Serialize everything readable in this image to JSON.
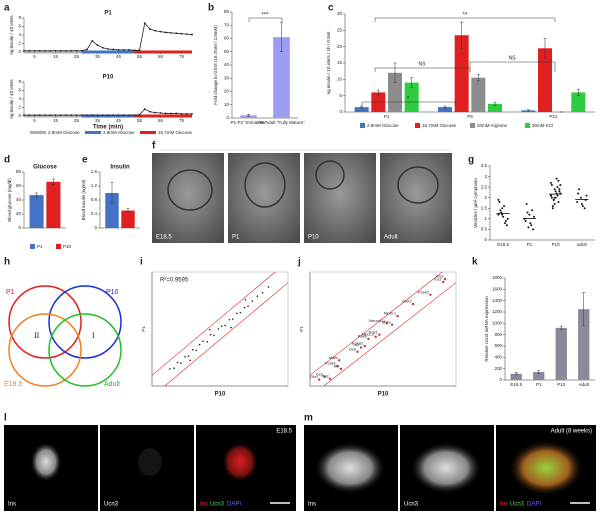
{
  "panel_labels": [
    "a",
    "b",
    "c",
    "d",
    "e",
    "f",
    "g",
    "h",
    "i",
    "j",
    "k",
    "l",
    "m"
  ],
  "chart_data": [
    {
      "type": "line",
      "title": "P1",
      "ylabel": "ng insulin / 40 islets",
      "color": "#222222",
      "x": [
        0,
        2.5,
        5,
        7.5,
        10,
        12.5,
        15,
        17.5,
        20,
        22.5,
        25,
        27.5,
        30,
        32.5,
        35,
        37.5,
        40,
        42.5,
        45,
        47.5,
        50,
        52.5,
        55,
        57.5,
        60,
        62.5,
        65,
        67.5,
        70,
        72.5,
        75,
        77.5,
        80
      ],
      "values": [
        0.3,
        0.3,
        0.3,
        0.3,
        0.3,
        0.3,
        0.3,
        0.3,
        0.3,
        0.3,
        0.3,
        0.3,
        0.6,
        2.6,
        1.6,
        1.0,
        0.7,
        0.6,
        0.5,
        0.5,
        0.5,
        0.4,
        0.4,
        6.8,
        5.4,
        5.0,
        4.8,
        4.6,
        4.5,
        4.4,
        4.3,
        4.2,
        4.1
      ],
      "xlim": [
        0,
        80
      ],
      "xticks": [
        5,
        15,
        25,
        35,
        45,
        55,
        65,
        75
      ],
      "ylim": [
        0,
        8
      ],
      "yticks": [
        0,
        2,
        4,
        6,
        8
      ],
      "bands": [
        {
          "name": "2.8mM Glucose",
          "color": "#b0b0b0",
          "range": [
            0,
            27.5
          ]
        },
        {
          "name": "2.8mM Glucose",
          "color": "#4472c4",
          "range": [
            27.5,
            52.5
          ]
        },
        {
          "name": "16.7mM Glucose",
          "color": "#e02020",
          "range": [
            52.5,
            80
          ]
        }
      ]
    },
    {
      "type": "line",
      "title": "P10",
      "xlabel": "Time (min)",
      "ylabel": "ng insulin / 40 islets",
      "color": "#222222",
      "x": [
        0,
        2.5,
        5,
        7.5,
        10,
        12.5,
        15,
        17.5,
        20,
        22.5,
        25,
        27.5,
        30,
        32.5,
        35,
        37.5,
        40,
        42.5,
        45,
        47.5,
        50,
        52.5,
        55,
        57.5,
        60,
        62.5,
        65,
        67.5,
        70,
        72.5,
        75,
        77.5,
        80
      ],
      "values": [
        0.2,
        0.2,
        0.2,
        0.2,
        0.2,
        0.2,
        0.2,
        0.2,
        0.2,
        0.2,
        0.2,
        0.2,
        0.2,
        0.2,
        0.2,
        0.2,
        0.2,
        0.2,
        0.2,
        0.2,
        0.2,
        0.2,
        0.3,
        1.6,
        1.0,
        0.8,
        0.7,
        0.6,
        0.6,
        0.6,
        0.5,
        0.5,
        0.5
      ],
      "xlim": [
        0,
        80
      ],
      "xticks": [
        5,
        15,
        25,
        35,
        45,
        55,
        65,
        75
      ],
      "ylim": [
        0,
        8
      ],
      "yticks": [
        0,
        2,
        4,
        6,
        8
      ]
    },
    {
      "type": "bar",
      "ylabel": "Fold change in GSIS (16.7mM / 2.8mM)",
      "color": "#9c9cf0",
      "categories": [
        "P1-P2 \"Immature\"",
        "P9-Adult \"Fully Mature\""
      ],
      "values": [
        2,
        61
      ],
      "errors": [
        0.8,
        11
      ],
      "ylim": [
        0,
        80
      ],
      "yticks": [
        0,
        10,
        20,
        30,
        40,
        50,
        60,
        70,
        80
      ],
      "annotations": [
        "***"
      ]
    },
    {
      "type": "bar",
      "ylabel": "ng insulin / 10 islets / 1h / 0.5ml",
      "categories": [
        "P1",
        "P9",
        "P21"
      ],
      "series": [
        {
          "name": "2.8mM Glucose",
          "color": "#4472c4",
          "values": [
            1.5,
            1.5,
            0.5
          ],
          "errors": [
            0.3,
            0.3,
            0.2
          ]
        },
        {
          "name": "16.7mM Glucose",
          "color": "#e02020",
          "values": [
            6,
            23.5,
            19.5
          ],
          "errors": [
            0.7,
            4,
            3
          ]
        },
        {
          "name": "20mM Arginine",
          "color": "#8c8c8c",
          "values": [
            12,
            10.5,
            0
          ],
          "errors": [
            3,
            1,
            0
          ]
        },
        {
          "name": "30mM KCl",
          "color": "#2ecc40",
          "values": [
            9,
            2.5,
            6
          ],
          "errors": [
            1.5,
            0.5,
            1
          ]
        }
      ],
      "ylim": [
        0,
        30
      ],
      "yticks": [
        0,
        5,
        10,
        15,
        20,
        25,
        30
      ],
      "annotations": [
        "**",
        "NS",
        "NS",
        "*"
      ]
    },
    {
      "type": "bar",
      "title": "Glucose",
      "ylabel": "Blood glucose (mg/dl)",
      "categories": [
        null
      ],
      "series": [
        {
          "name": "P1",
          "color": "#4472c4",
          "values": [
            47
          ],
          "errors": [
            3
          ]
        },
        {
          "name": "P10",
          "color": "#e02020",
          "values": [
            66
          ],
          "errors": [
            4
          ]
        }
      ],
      "ylim": [
        0,
        80
      ],
      "yticks": [
        0,
        20,
        40,
        60,
        80
      ]
    },
    {
      "type": "bar",
      "title": "Insulin",
      "ylabel": "Blood insulin (ng/ml)",
      "categories": [
        null
      ],
      "series": [
        {
          "color": "#4472c4",
          "values": [
            1.0
          ],
          "errors": [
            0.3
          ]
        },
        {
          "color": "#e02020",
          "values": [
            0.5
          ],
          "errors": [
            0.05
          ]
        }
      ],
      "ylim": [
        0,
        1.6
      ],
      "yticks": [
        0,
        0.4,
        0.8,
        1.2,
        1.6
      ]
    },
    {
      "type": "strip",
      "ylabel": "Vesicles / µm² cytoplasm",
      "color": "#111111",
      "categories": [
        "E18.5",
        "P1",
        "P10",
        "adult"
      ],
      "values": [
        [
          1.2,
          1.5,
          0.9,
          1.8,
          1.1,
          0.7,
          1.4,
          1.6,
          1.0,
          1.3,
          0.8,
          1.9,
          1.2
        ],
        [
          1.0,
          0.6,
          1.4,
          0.9,
          1.2,
          0.5,
          1.7,
          0.8,
          1.1,
          1.3,
          0.7
        ],
        [
          2.1,
          2.4,
          1.8,
          2.6,
          2.0,
          2.3,
          1.6,
          2.9,
          2.2,
          1.9,
          2.5,
          2.1,
          1.7,
          2.8,
          2.0,
          2.3,
          2.4,
          1.5,
          2.2,
          2.6,
          1.9,
          2.1,
          2.7,
          2.0
        ],
        [
          1.8,
          2.0,
          1.5,
          2.2,
          1.7,
          1.9,
          2.4,
          1.6,
          2.1
        ]
      ],
      "means": [
        1.26,
        1.02,
        2.17,
        1.91
      ],
      "ylim": [
        0,
        3.5
      ],
      "yticks": [
        0,
        0.5,
        1,
        1.5,
        2,
        2.5,
        3,
        3.5
      ]
    },
    {
      "type": "scatter",
      "xlabel": "P10",
      "ylabel": "P1",
      "annotation": "R²=0.9595",
      "color": "#222222",
      "x": [
        2.1,
        2.6,
        3.0,
        3.4,
        3.9,
        4.3,
        4.8,
        5.2,
        5.6,
        6.0,
        6.5,
        6.9,
        7.3,
        7.8,
        8.2,
        8.6,
        9.1,
        9.5,
        10.0,
        10.4,
        10.9,
        11.3,
        11.8,
        12.4,
        13.0,
        13.7,
        4.5,
        6.8,
        9.3,
        11.0
      ],
      "y": [
        2.4,
        2.5,
        3.3,
        3.2,
        4.1,
        4.2,
        5.1,
        5.0,
        5.8,
        6.3,
        6.2,
        7.2,
        7.1,
        8.0,
        8.4,
        8.5,
        9.3,
        9.4,
        10.2,
        10.3,
        11.0,
        11.2,
        11.9,
        12.6,
        13.1,
        13.9,
        3.6,
        7.9,
        8.2,
        12.1
      ],
      "xlim": [
        0,
        16
      ],
      "ylim": [
        0,
        16
      ]
    },
    {
      "type": "scatter",
      "xlabel": "P10",
      "ylabel": "P1",
      "color": "#c0392b",
      "point_labels": [
        "Ins1",
        "Ins2",
        "Pcsk2",
        "Glut2",
        "Nkx6.1",
        "Mafa",
        "NeuroD1",
        "Pdx1",
        "Nkx2.2",
        "Pax6",
        "Foxa2",
        "Isl1",
        "Gck",
        "Mafb",
        "Pcsk1",
        "Arx",
        "Ghrl",
        "Gcg",
        "Sst"
      ],
      "x": [
        14.8,
        14.6,
        13.2,
        11.3,
        9.6,
        9.0,
        8.4,
        7.6,
        7.2,
        6.4,
        6.0,
        5.6,
        5.2,
        3.2,
        3.0,
        3.4,
        1.0,
        1.6,
        2.2
      ],
      "y": [
        15.0,
        14.6,
        12.8,
        11.5,
        9.8,
        8.6,
        8.8,
        7.2,
        6.9,
        6.6,
        5.6,
        5.4,
        4.8,
        3.6,
        2.8,
        2.4,
        0.9,
        1.3,
        1.0
      ],
      "xlim": [
        0,
        16
      ],
      "ylim": [
        0,
        16
      ]
    },
    {
      "type": "bar",
      "ylabel": "Relative Ucn3 mRNA expression",
      "color": "#8a8a9a",
      "categories": [
        "E18.5",
        "P1",
        "P10",
        "Adult"
      ],
      "values": [
        110,
        140,
        920,
        1250
      ],
      "errors": [
        20,
        25,
        30,
        290
      ],
      "ylim": [
        0,
        1800
      ],
      "yticks": [
        0,
        200,
        400,
        600,
        800,
        1000,
        1200,
        1400,
        1600,
        1800
      ]
    }
  ],
  "venn": {
    "sets": [
      "P1",
      "P10",
      "E18.5",
      "Adult"
    ],
    "regions": [
      "II",
      "I"
    ]
  },
  "em_images": [
    "E18.5",
    "P1",
    "P10",
    "Adult"
  ],
  "fluorescence": {
    "l": {
      "stage": "E18.5",
      "channels": [
        "Ins",
        "Ucn3"
      ],
      "merge": [
        "Ins",
        "Ucn3",
        "DAPI"
      ]
    },
    "m": {
      "stage": "Adult (8 weeks)",
      "channels": [
        "Ins",
        "Ucn3"
      ],
      "merge": [
        "Ins",
        "Ucn3",
        "DAPI"
      ]
    }
  }
}
